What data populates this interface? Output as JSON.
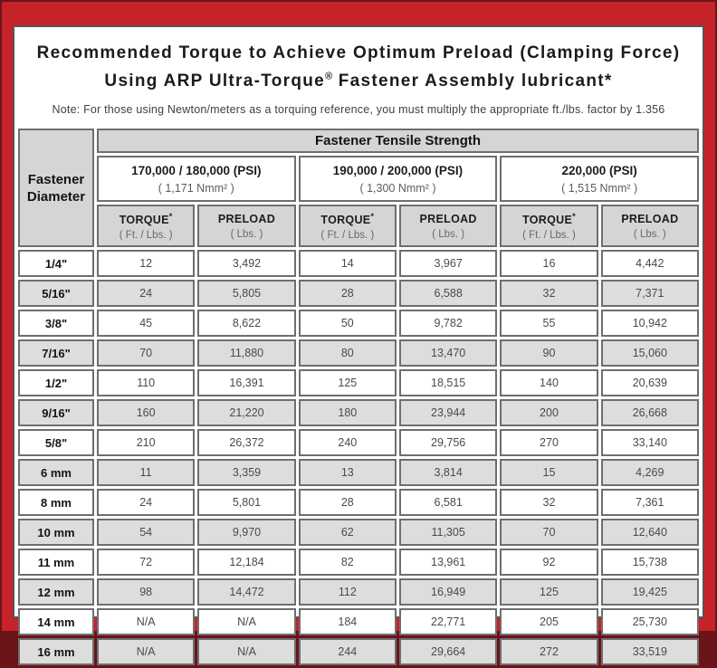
{
  "header": {
    "title_line1": "Recommended Torque to Achieve Optimum Preload (Clamping Force)",
    "title_line2_pre": "Using ARP Ultra-Torque",
    "title_line2_reg": "®",
    "title_line2_post": " Fastener Assembly lubricant*",
    "note": "Note: For those using Newton/meters as a torquing reference, you must multiply the appropriate ft./lbs. factor by 1.356"
  },
  "table": {
    "tensile_header": "Fastener Tensile Strength",
    "diameter_header_line1": "Fastener",
    "diameter_header_line2": "Diameter",
    "groups": [
      {
        "psi": "170,000 / 180,000 (PSI)",
        "nmm": "( 1,171 Nmm² )"
      },
      {
        "psi": "190,000 / 200,000 (PSI)",
        "nmm": "( 1,300 Nmm² )"
      },
      {
        "psi": "220,000 (PSI)",
        "nmm": "( 1,515 Nmm² )"
      }
    ],
    "col_headers": {
      "torque": "TORQUE",
      "torque_mark": "*",
      "torque_unit": "( Ft. / Lbs. )",
      "preload": "PRELOAD",
      "preload_unit": "( Lbs. )"
    },
    "rows": [
      {
        "diameter": "1/4\"",
        "values": [
          "12",
          "3,492",
          "14",
          "3,967",
          "16",
          "4,442"
        ]
      },
      {
        "diameter": "5/16\"",
        "values": [
          "24",
          "5,805",
          "28",
          "6,588",
          "32",
          "7,371"
        ]
      },
      {
        "diameter": "3/8\"",
        "values": [
          "45",
          "8,622",
          "50",
          "9,782",
          "55",
          "10,942"
        ]
      },
      {
        "diameter": "7/16\"",
        "values": [
          "70",
          "11,880",
          "80",
          "13,470",
          "90",
          "15,060"
        ]
      },
      {
        "diameter": "1/2\"",
        "values": [
          "110",
          "16,391",
          "125",
          "18,515",
          "140",
          "20,639"
        ]
      },
      {
        "diameter": "9/16\"",
        "values": [
          "160",
          "21,220",
          "180",
          "23,944",
          "200",
          "26,668"
        ]
      },
      {
        "diameter": "5/8\"",
        "values": [
          "210",
          "26,372",
          "240",
          "29,756",
          "270",
          "33,140"
        ]
      },
      {
        "diameter": "6 mm",
        "values": [
          "11",
          "3,359",
          "13",
          "3,814",
          "15",
          "4,269"
        ]
      },
      {
        "diameter": "8 mm",
        "values": [
          "24",
          "5,801",
          "28",
          "6,581",
          "32",
          "7,361"
        ]
      },
      {
        "diameter": "10 mm",
        "values": [
          "54",
          "9,970",
          "62",
          "11,305",
          "70",
          "12,640"
        ]
      },
      {
        "diameter": "11 mm",
        "values": [
          "72",
          "12,184",
          "82",
          "13,961",
          "92",
          "15,738"
        ]
      },
      {
        "diameter": "12 mm",
        "values": [
          "98",
          "14,472",
          "112",
          "16,949",
          "125",
          "19,425"
        ]
      },
      {
        "diameter": "14 mm",
        "values": [
          "N/A",
          "N/A",
          "184",
          "22,771",
          "205",
          "25,730"
        ]
      },
      {
        "diameter": "16 mm",
        "values": [
          "N/A",
          "N/A",
          "244",
          "29,664",
          "272",
          "33,519"
        ]
      }
    ]
  },
  "colors": {
    "frame_red": "#c6222a",
    "frame_maroon": "#6b1419",
    "cell_gray": "#d5d5d5",
    "row_stripe_gray": "#dddddd",
    "cell_border": "#6e6e70"
  }
}
